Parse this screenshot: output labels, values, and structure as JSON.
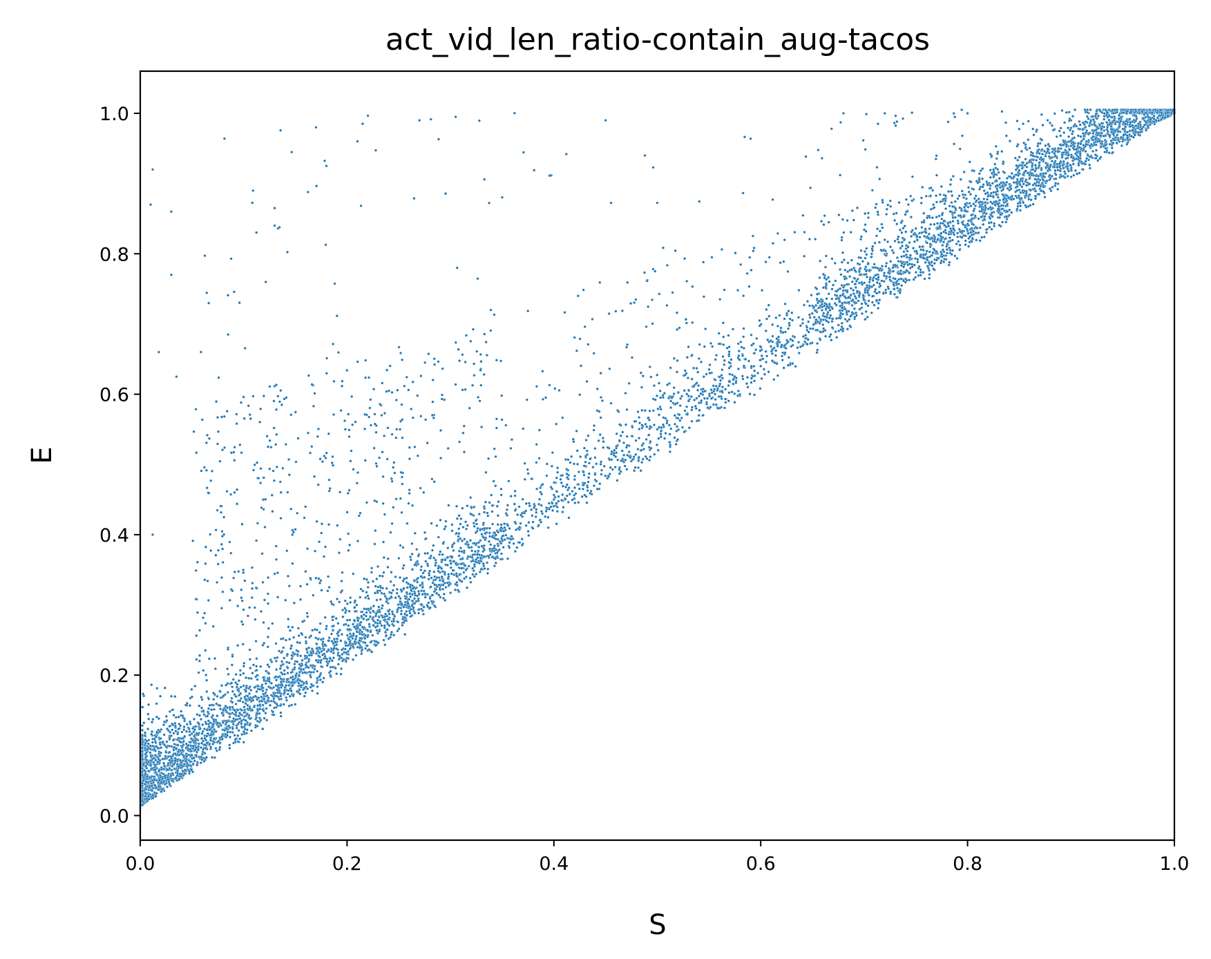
{
  "chart_data": {
    "type": "scatter",
    "title": "act_vid_len_ratio-contain_aug-tacos",
    "xlabel": "S",
    "ylabel": "E",
    "xlim": [
      0.0,
      1.0
    ],
    "ylim": [
      -0.035,
      1.06
    ],
    "xticks": [
      "0.0",
      "0.2",
      "0.4",
      "0.6",
      "0.8",
      "1.0"
    ],
    "yticks": [
      "0.0",
      "0.2",
      "0.4",
      "0.6",
      "0.8",
      "1.0"
    ],
    "grid": false,
    "marker_color": "#1f77b4",
    "marker_edge": "#ffffff",
    "points_sample": [
      [
        0.005,
        0.02
      ],
      [
        0.01,
        0.03
      ],
      [
        0.012,
        0.92
      ],
      [
        0.01,
        0.87
      ],
      [
        0.03,
        0.86
      ],
      [
        0.03,
        0.77
      ],
      [
        0.018,
        0.66
      ],
      [
        0.035,
        0.625
      ],
      [
        0.012,
        0.4
      ],
      [
        0.085,
        0.685
      ],
      [
        0.13,
        0.865
      ],
      [
        0.13,
        0.84
      ],
      [
        0.17,
        0.98
      ],
      [
        0.18,
        0.925
      ],
      [
        0.21,
        0.96
      ],
      [
        0.215,
        0.985
      ],
      [
        0.27,
        0.99
      ],
      [
        0.305,
        0.995
      ],
      [
        0.45,
        0.99
      ],
      [
        0.68,
        1.0
      ],
      [
        0.72,
        1.0
      ],
      [
        0.8,
        1.0
      ],
      [
        0.9,
        0.99
      ],
      [
        0.97,
        1.0
      ],
      [
        1.0,
        1.0
      ],
      [
        0.5,
        0.55
      ],
      [
        0.4,
        0.45
      ],
      [
        0.3,
        0.33
      ],
      [
        0.2,
        0.23
      ],
      [
        0.1,
        0.12
      ],
      [
        0.6,
        0.64
      ],
      [
        0.7,
        0.74
      ],
      [
        0.8,
        0.84
      ],
      [
        0.9,
        0.92
      ],
      [
        0.95,
        0.96
      ]
    ],
    "generated_point_count": 7000,
    "distribution_note_visible": ""
  }
}
